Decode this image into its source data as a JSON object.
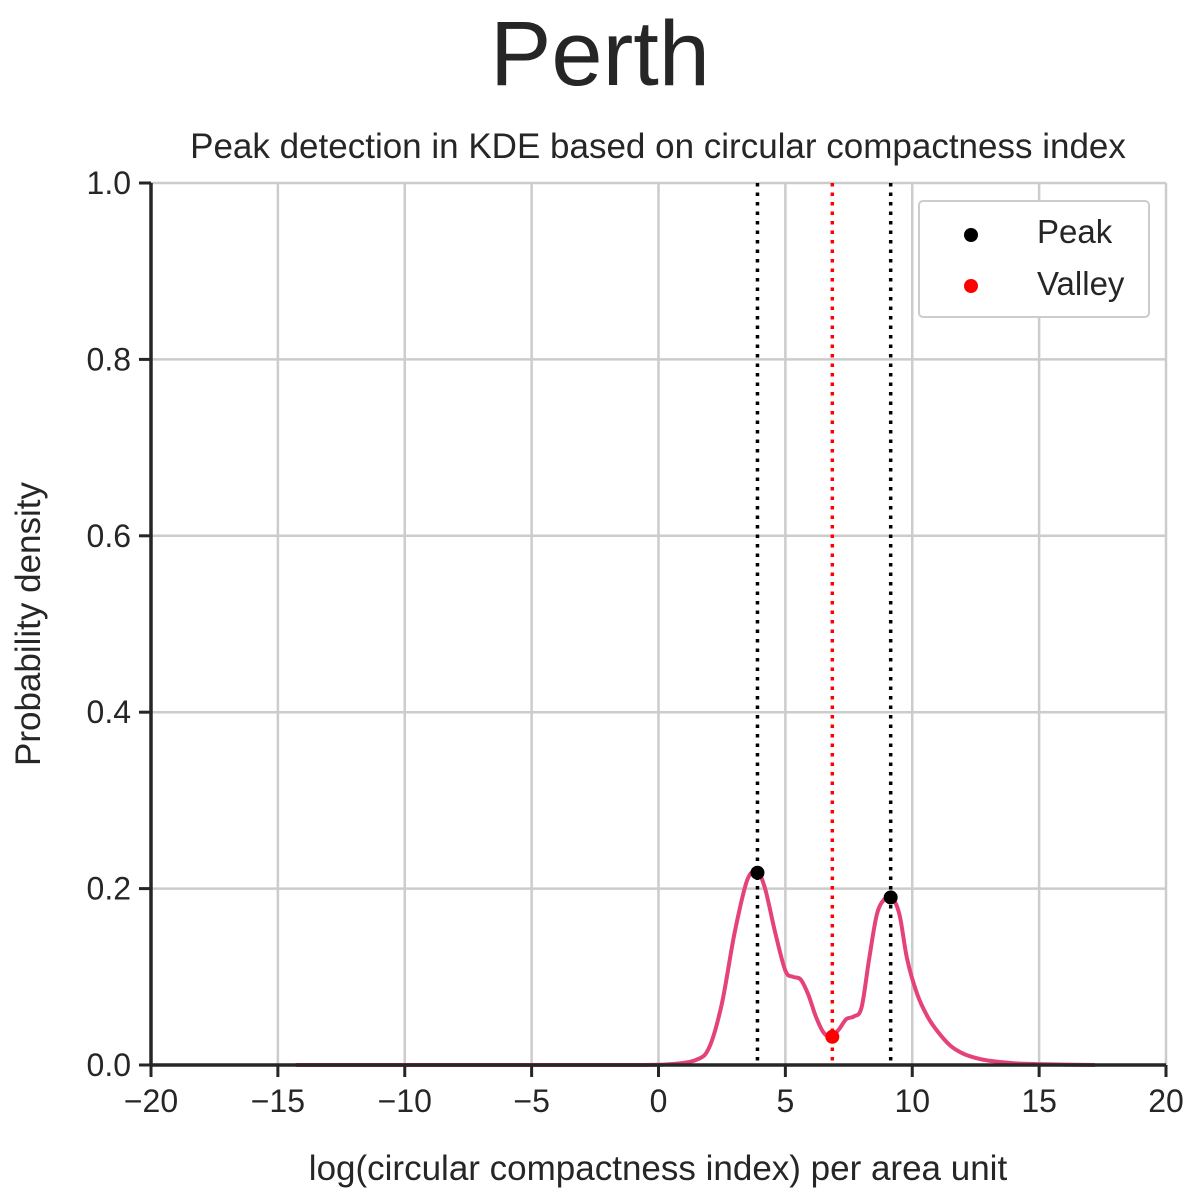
{
  "suptitle": "Perth",
  "chart_data": {
    "type": "line",
    "title": "Peak detection in KDE based on circular compactness index",
    "xlabel": "log(circular compactness index) per area unit",
    "ylabel": "Probability density",
    "xlim": [
      -20,
      20
    ],
    "ylim": [
      0,
      1.0
    ],
    "x_ticks": [
      -20,
      -15,
      -10,
      -5,
      0,
      5,
      10,
      15,
      20
    ],
    "x_tick_labels": [
      "−20",
      "−15",
      "−10",
      "−5",
      "0",
      "5",
      "10",
      "15",
      "20"
    ],
    "y_ticks": [
      0.0,
      0.2,
      0.4,
      0.6,
      0.8,
      1.0
    ],
    "y_tick_labels": [
      "0.0",
      "0.2",
      "0.4",
      "0.6",
      "0.8",
      "1.0"
    ],
    "grid": true,
    "legend_position": "top-right",
    "series": [
      {
        "type": "line",
        "color": "#e5417a",
        "x": [
          -14.3,
          -10,
          -5,
          -1,
          0.5,
          1.5,
          2.0,
          2.5,
          3.0,
          3.5,
          3.9,
          4.2,
          4.6,
          5.0,
          5.3,
          5.6,
          5.9,
          6.2,
          6.5,
          6.8,
          7.1,
          7.4,
          7.7,
          8.0,
          8.3,
          8.6,
          8.9,
          9.2,
          9.5,
          9.8,
          10.2,
          10.6,
          11.0,
          11.5,
          12.0,
          12.5,
          13.0,
          14.0,
          15.0,
          17.2
        ],
        "y": [
          0.0,
          0.0,
          0.0,
          0.0,
          0.001,
          0.006,
          0.02,
          0.07,
          0.15,
          0.21,
          0.218,
          0.2,
          0.15,
          0.107,
          0.1,
          0.097,
          0.08,
          0.055,
          0.037,
          0.032,
          0.04,
          0.052,
          0.055,
          0.065,
          0.12,
          0.17,
          0.188,
          0.19,
          0.17,
          0.12,
          0.08,
          0.055,
          0.038,
          0.022,
          0.013,
          0.008,
          0.005,
          0.002,
          0.001,
          0.0
        ]
      },
      {
        "name": "Peak",
        "type": "scatter",
        "color": "#000000",
        "x": [
          3.9,
          9.15
        ],
        "y": [
          0.218,
          0.19
        ]
      },
      {
        "name": "Valley",
        "type": "scatter",
        "color": "#ff0000",
        "x": [
          6.85
        ],
        "y": [
          0.032
        ]
      }
    ],
    "vlines": [
      {
        "x": 3.9,
        "color": "#000000",
        "style": "dotted"
      },
      {
        "x": 9.15,
        "color": "#000000",
        "style": "dotted"
      },
      {
        "x": 6.85,
        "color": "#ff0000",
        "style": "dotted"
      }
    ]
  }
}
